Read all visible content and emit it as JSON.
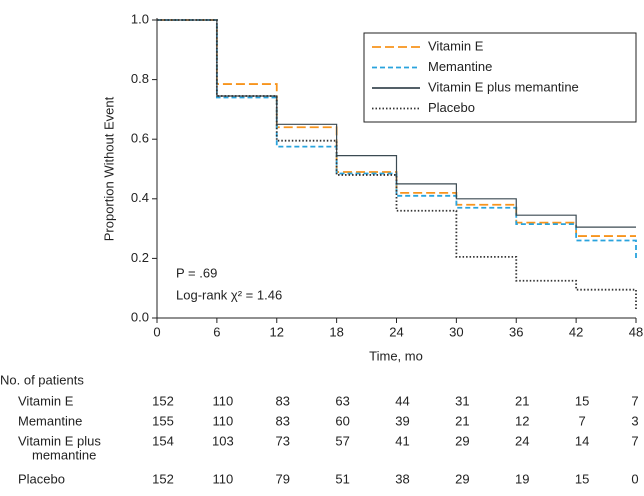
{
  "chart_data": {
    "type": "step",
    "ylabel": "Proportion Without Event",
    "xlabel": "Time, mo",
    "x": [
      0,
      6,
      12,
      18,
      24,
      30,
      36,
      42,
      48
    ],
    "xlim": [
      0,
      48
    ],
    "xticks": [
      0,
      6,
      12,
      18,
      24,
      30,
      36,
      42,
      48
    ],
    "ylim": [
      0,
      1
    ],
    "yticks": [
      {
        "value": 0,
        "label": "0.0"
      },
      0.2,
      0.4,
      0.6,
      0.8,
      {
        "value": 1,
        "label": "1.0"
      }
    ],
    "legend_position": "upper right",
    "series": [
      {
        "name": "Vitamin E",
        "color": "#f7941d",
        "dash": "9,4",
        "values": [
          1.0,
          0.785,
          0.64,
          0.49,
          0.42,
          0.38,
          0.32,
          0.275,
          0.275
        ]
      },
      {
        "name": "Memantine",
        "color": "#29a3dd",
        "dash": "5,3",
        "values": [
          1.0,
          0.74,
          0.575,
          0.485,
          0.41,
          0.37,
          0.315,
          0.26,
          0.2
        ]
      },
      {
        "name": "Vitamin E plus memantine",
        "color": "#3b4a52",
        "dash": "",
        "values": [
          1.0,
          0.745,
          0.65,
          0.545,
          0.45,
          0.4,
          0.345,
          0.305,
          0.305
        ]
      },
      {
        "name": "Placebo",
        "color": "#333333",
        "dash": "1.5,2",
        "values": [
          1.0,
          0.745,
          0.595,
          0.48,
          0.36,
          0.205,
          0.125,
          0.095,
          0.03
        ]
      }
    ],
    "annotations": [
      "P = .69",
      "Log-rank χ² = 1.46"
    ],
    "risk_table": {
      "title": "No. of patients",
      "rows": [
        {
          "label": [
            "Vitamin E"
          ],
          "counts": [
            152,
            110,
            83,
            63,
            44,
            31,
            21,
            15,
            7
          ]
        },
        {
          "label": [
            "Memantine"
          ],
          "counts": [
            155,
            110,
            83,
            60,
            39,
            21,
            12,
            7,
            3
          ]
        },
        {
          "label": [
            "Vitamin E plus",
            "memantine"
          ],
          "counts": [
            154,
            103,
            73,
            57,
            41,
            29,
            24,
            14,
            7
          ]
        },
        {
          "label": [
            "Placebo"
          ],
          "counts": [
            152,
            110,
            79,
            51,
            38,
            29,
            19,
            15,
            0
          ]
        }
      ]
    }
  }
}
